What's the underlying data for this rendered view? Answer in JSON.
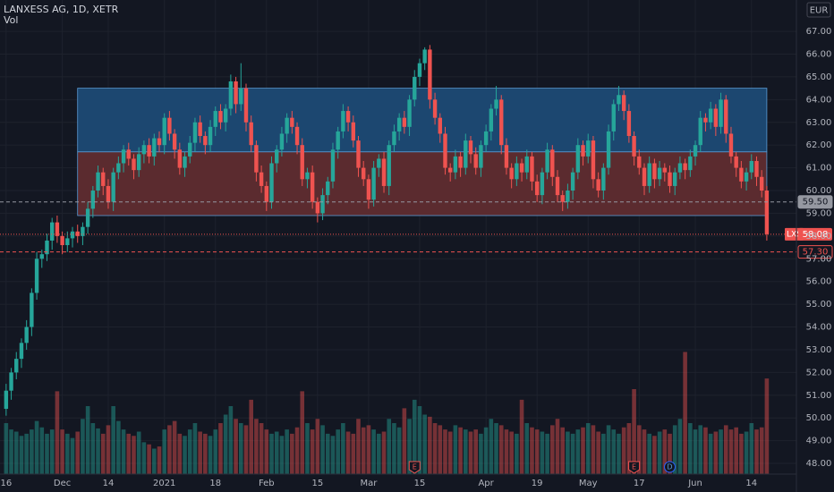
{
  "chart_data": {
    "type": "candlestick",
    "title": "LANXESS AG, 1D, XETR",
    "volume_label": "Vol",
    "currency": "EUR",
    "up_color": "#26a69a",
    "down_color": "#ef5350",
    "grid": true,
    "xlim": [
      -1.2,
      154.8
    ],
    "ylim": [
      47.53,
      68.38
    ],
    "volume_ylim": [
      0,
      1600
    ],
    "yticks": [
      {
        "value": 48,
        "label": "48.00"
      },
      {
        "value": 49,
        "label": "49.00"
      },
      {
        "value": 50,
        "label": "50.00"
      },
      {
        "value": 51,
        "label": "51.00"
      },
      {
        "value": 52,
        "label": "52.00"
      },
      {
        "value": 53,
        "label": "53.00"
      },
      {
        "value": 54,
        "label": "54.00"
      },
      {
        "value": 55,
        "label": "55.00"
      },
      {
        "value": 56,
        "label": "56.00"
      },
      {
        "value": 57,
        "label": "57.00"
      },
      {
        "value": 58,
        "label": "58.00"
      },
      {
        "value": 59,
        "label": "59.00"
      },
      {
        "value": 60,
        "label": "60.00"
      },
      {
        "value": 61,
        "label": "61.00"
      },
      {
        "value": 62,
        "label": "62.00"
      },
      {
        "value": 63,
        "label": "63.00"
      },
      {
        "value": 64,
        "label": "64.00"
      },
      {
        "value": 65,
        "label": "65.00"
      },
      {
        "value": 66,
        "label": "66.00"
      },
      {
        "value": 67,
        "label": "67.00"
      }
    ],
    "xticks": [
      {
        "value": 0,
        "label": "16"
      },
      {
        "value": 11,
        "label": "Dec"
      },
      {
        "value": 20,
        "label": "14"
      },
      {
        "value": 31,
        "label": "2021"
      },
      {
        "value": 41,
        "label": "18"
      },
      {
        "value": 51,
        "label": "Feb"
      },
      {
        "value": 61,
        "label": "15"
      },
      {
        "value": 71,
        "label": "Mar"
      },
      {
        "value": 81,
        "label": "15"
      },
      {
        "value": 94,
        "label": "Apr"
      },
      {
        "value": 104,
        "label": "19"
      },
      {
        "value": 114,
        "label": "May"
      },
      {
        "value": 124,
        "label": "17"
      },
      {
        "value": 135,
        "label": "Jun"
      },
      {
        "value": 146,
        "label": "14"
      }
    ],
    "range_box": {
      "top": 64.5,
      "mid": 61.7,
      "bottom": 58.9,
      "start": 14,
      "end": 149,
      "upper_color": "#1c4770",
      "lower_color": "#5b2b2f",
      "edge_color": "#5b9bd5"
    },
    "level_lines": [
      {
        "value": 59.5,
        "label": "59.50",
        "color": "#9598a1"
      },
      {
        "value": 57.3,
        "label": "57.30",
        "color": "#ef5350"
      }
    ],
    "last_price": {
      "symbol": "LXS",
      "value": 58.08,
      "color": "#ef5350"
    },
    "events": [
      {
        "label": "E",
        "index": 80
      },
      {
        "label": "E",
        "index": 123
      },
      {
        "label": "D",
        "index": 130
      }
    ],
    "ohlc": [
      [
        50.4,
        51.5,
        50.1,
        51.2
      ],
      [
        51.2,
        52.2,
        50.8,
        52.0
      ],
      [
        52.0,
        52.9,
        51.7,
        52.6
      ],
      [
        52.6,
        53.5,
        52.2,
        53.3
      ],
      [
        53.3,
        54.3,
        53.0,
        54.0
      ],
      [
        54.0,
        55.7,
        53.6,
        55.5
      ],
      [
        55.5,
        57.3,
        55.2,
        57.0
      ],
      [
        57.0,
        57.4,
        56.6,
        57.2
      ],
      [
        57.2,
        58.1,
        56.9,
        57.8
      ],
      [
        57.8,
        58.8,
        57.4,
        58.6
      ],
      [
        58.6,
        58.9,
        57.7,
        58.0
      ],
      [
        58.0,
        58.2,
        57.2,
        57.6
      ],
      [
        57.6,
        58.2,
        57.3,
        57.9
      ],
      [
        57.9,
        58.4,
        57.5,
        58.2
      ],
      [
        58.2,
        58.5,
        57.7,
        58.0
      ],
      [
        58.0,
        58.6,
        57.6,
        58.4
      ],
      [
        58.4,
        59.5,
        58.1,
        59.2
      ],
      [
        59.2,
        60.2,
        58.8,
        60.0
      ],
      [
        60.0,
        61.1,
        59.7,
        60.8
      ],
      [
        60.8,
        61.0,
        59.8,
        60.2
      ],
      [
        60.2,
        60.5,
        59.2,
        59.5
      ],
      [
        59.5,
        61.0,
        59.1,
        60.8
      ],
      [
        60.8,
        61.5,
        60.5,
        61.2
      ],
      [
        61.2,
        62.0,
        60.8,
        61.8
      ],
      [
        61.8,
        62.1,
        61.1,
        61.4
      ],
      [
        61.4,
        61.6,
        60.5,
        60.9
      ],
      [
        60.9,
        61.9,
        60.6,
        61.6
      ],
      [
        61.6,
        62.2,
        61.2,
        62.0
      ],
      [
        62.0,
        62.3,
        61.2,
        61.5
      ],
      [
        61.5,
        62.5,
        61.1,
        62.3
      ],
      [
        62.3,
        62.6,
        61.7,
        62.0
      ],
      [
        62.0,
        63.4,
        61.6,
        63.2
      ],
      [
        63.2,
        63.5,
        62.2,
        62.5
      ],
      [
        62.5,
        62.7,
        61.4,
        61.8
      ],
      [
        61.8,
        62.1,
        60.7,
        61.0
      ],
      [
        61.0,
        61.7,
        60.6,
        61.5
      ],
      [
        61.5,
        62.4,
        61.2,
        62.1
      ],
      [
        62.1,
        63.2,
        61.7,
        63.0
      ],
      [
        63.0,
        63.3,
        62.1,
        62.4
      ],
      [
        62.4,
        62.6,
        61.6,
        62.0
      ],
      [
        62.0,
        63.1,
        61.7,
        62.8
      ],
      [
        62.8,
        63.7,
        62.4,
        63.5
      ],
      [
        63.5,
        63.8,
        62.7,
        63.0
      ],
      [
        63.0,
        63.8,
        62.6,
        63.6
      ],
      [
        63.6,
        65.1,
        63.3,
        64.8
      ],
      [
        64.8,
        65.0,
        63.4,
        63.8
      ],
      [
        63.8,
        65.6,
        63.5,
        64.5
      ],
      [
        64.5,
        64.7,
        62.6,
        63.0
      ],
      [
        63.0,
        63.3,
        61.7,
        62.0
      ],
      [
        62.0,
        62.2,
        60.4,
        60.8
      ],
      [
        60.8,
        61.1,
        59.9,
        60.2
      ],
      [
        60.2,
        60.4,
        59.1,
        59.5
      ],
      [
        59.5,
        61.5,
        59.2,
        61.2
      ],
      [
        61.2,
        62.0,
        60.8,
        61.8
      ],
      [
        61.8,
        62.8,
        61.5,
        62.5
      ],
      [
        62.5,
        63.4,
        62.1,
        63.2
      ],
      [
        63.2,
        63.5,
        62.5,
        62.8
      ],
      [
        62.8,
        63.0,
        61.6,
        62.0
      ],
      [
        62.0,
        62.3,
        60.2,
        60.5
      ],
      [
        60.5,
        61.0,
        60.1,
        60.8
      ],
      [
        60.8,
        61.1,
        59.2,
        59.5
      ],
      [
        59.5,
        59.7,
        58.6,
        59.0
      ],
      [
        59.0,
        60.1,
        58.7,
        59.8
      ],
      [
        59.8,
        60.6,
        59.4,
        60.4
      ],
      [
        60.4,
        62.1,
        60.1,
        61.8
      ],
      [
        61.8,
        62.8,
        61.4,
        62.6
      ],
      [
        62.6,
        63.8,
        62.3,
        63.5
      ],
      [
        63.5,
        63.7,
        62.6,
        63.0
      ],
      [
        63.0,
        63.3,
        61.9,
        62.2
      ],
      [
        62.2,
        62.4,
        60.6,
        61.0
      ],
      [
        61.0,
        61.3,
        60.2,
        60.5
      ],
      [
        60.5,
        60.7,
        59.2,
        59.6
      ],
      [
        59.6,
        61.3,
        59.3,
        61.0
      ],
      [
        61.0,
        61.6,
        60.6,
        61.4
      ],
      [
        61.4,
        61.7,
        59.9,
        60.2
      ],
      [
        60.2,
        62.2,
        59.8,
        62.0
      ],
      [
        62.0,
        62.9,
        61.7,
        62.6
      ],
      [
        62.6,
        63.4,
        62.2,
        63.2
      ],
      [
        63.2,
        63.5,
        62.5,
        62.8
      ],
      [
        62.8,
        64.2,
        62.4,
        64.0
      ],
      [
        64.0,
        65.3,
        63.7,
        65.0
      ],
      [
        65.0,
        65.8,
        64.6,
        65.6
      ],
      [
        65.6,
        66.3,
        65.3,
        66.2
      ],
      [
        66.2,
        66.4,
        63.6,
        64.0
      ],
      [
        64.0,
        64.3,
        62.9,
        63.2
      ],
      [
        63.2,
        63.4,
        62.1,
        62.5
      ],
      [
        62.5,
        62.8,
        60.7,
        61.0
      ],
      [
        61.0,
        61.2,
        60.4,
        60.8
      ],
      [
        60.8,
        61.8,
        60.5,
        61.5
      ],
      [
        61.5,
        61.7,
        60.6,
        61.0
      ],
      [
        61.0,
        62.5,
        60.7,
        62.2
      ],
      [
        62.2,
        62.4,
        61.2,
        61.6
      ],
      [
        61.6,
        61.9,
        60.7,
        61.0
      ],
      [
        61.0,
        62.2,
        60.6,
        62.0
      ],
      [
        62.0,
        62.9,
        61.7,
        62.6
      ],
      [
        62.6,
        63.8,
        62.2,
        63.6
      ],
      [
        63.6,
        64.6,
        63.3,
        64.0
      ],
      [
        64.0,
        64.2,
        61.6,
        62.0
      ],
      [
        62.0,
        62.3,
        60.7,
        61.0
      ],
      [
        61.0,
        61.2,
        60.1,
        60.5
      ],
      [
        60.5,
        61.5,
        60.2,
        61.2
      ],
      [
        61.2,
        61.4,
        60.4,
        60.8
      ],
      [
        60.8,
        61.8,
        60.5,
        61.5
      ],
      [
        61.5,
        61.7,
        60.0,
        60.4
      ],
      [
        60.4,
        60.7,
        59.5,
        59.8
      ],
      [
        59.8,
        61.0,
        59.4,
        60.8
      ],
      [
        60.8,
        62.1,
        60.5,
        61.8
      ],
      [
        61.8,
        62.0,
        60.2,
        60.6
      ],
      [
        60.6,
        60.9,
        59.5,
        59.8
      ],
      [
        59.8,
        60.0,
        59.1,
        59.5
      ],
      [
        59.5,
        60.3,
        59.2,
        60.0
      ],
      [
        60.0,
        61.0,
        59.6,
        60.8
      ],
      [
        60.8,
        62.3,
        60.5,
        62.0
      ],
      [
        62.0,
        62.2,
        61.1,
        61.5
      ],
      [
        61.5,
        62.5,
        61.2,
        62.2
      ],
      [
        62.2,
        62.4,
        60.1,
        60.5
      ],
      [
        60.5,
        60.8,
        59.7,
        60.0
      ],
      [
        60.0,
        61.2,
        59.6,
        61.0
      ],
      [
        61.0,
        62.9,
        60.7,
        62.6
      ],
      [
        62.6,
        64.0,
        62.2,
        63.8
      ],
      [
        63.8,
        64.6,
        63.5,
        64.2
      ],
      [
        64.2,
        64.4,
        63.1,
        63.5
      ],
      [
        63.5,
        63.8,
        62.1,
        62.4
      ],
      [
        62.4,
        62.6,
        61.1,
        61.5
      ],
      [
        61.5,
        61.8,
        60.7,
        61.0
      ],
      [
        61.0,
        61.2,
        59.8,
        60.2
      ],
      [
        60.2,
        61.5,
        59.9,
        61.2
      ],
      [
        61.2,
        61.4,
        60.1,
        60.5
      ],
      [
        60.5,
        61.3,
        60.2,
        61.0
      ],
      [
        61.0,
        61.2,
        60.4,
        60.8
      ],
      [
        60.8,
        61.1,
        59.9,
        60.2
      ],
      [
        60.2,
        61.0,
        59.8,
        60.8
      ],
      [
        60.8,
        61.5,
        60.5,
        61.2
      ],
      [
        61.2,
        61.4,
        60.5,
        60.9
      ],
      [
        60.9,
        61.8,
        60.6,
        61.5
      ],
      [
        61.5,
        62.2,
        61.1,
        62.0
      ],
      [
        62.0,
        63.5,
        61.7,
        63.2
      ],
      [
        63.2,
        63.4,
        62.6,
        63.0
      ],
      [
        63.0,
        63.9,
        62.7,
        63.6
      ],
      [
        63.6,
        63.8,
        62.4,
        62.8
      ],
      [
        62.8,
        64.3,
        62.5,
        64.0
      ],
      [
        64.0,
        64.2,
        62.1,
        62.5
      ],
      [
        62.5,
        62.8,
        61.2,
        61.5
      ],
      [
        61.5,
        61.7,
        60.6,
        61.0
      ],
      [
        61.0,
        61.3,
        60.1,
        60.4
      ],
      [
        60.4,
        61.0,
        60.0,
        60.8
      ],
      [
        60.8,
        61.6,
        60.5,
        61.3
      ],
      [
        61.3,
        61.5,
        60.2,
        60.6
      ],
      [
        60.6,
        60.9,
        59.7,
        60.0
      ],
      [
        60.0,
        60.2,
        57.8,
        58.08
      ]
    ],
    "volumes": [
      480,
      420,
      400,
      360,
      380,
      420,
      500,
      440,
      380,
      420,
      780,
      420,
      380,
      340,
      400,
      520,
      640,
      480,
      430,
      380,
      460,
      640,
      500,
      420,
      380,
      360,
      400,
      300,
      280,
      240,
      260,
      420,
      460,
      500,
      380,
      360,
      420,
      480,
      400,
      380,
      360,
      420,
      480,
      560,
      640,
      520,
      480,
      460,
      700,
      520,
      480,
      420,
      380,
      400,
      360,
      420,
      380,
      440,
      780,
      480,
      420,
      520,
      460,
      380,
      360,
      420,
      480,
      400,
      380,
      520,
      440,
      460,
      420,
      380,
      400,
      520,
      480,
      440,
      620,
      520,
      700,
      640,
      560,
      540,
      480,
      460,
      420,
      400,
      460,
      440,
      420,
      400,
      420,
      380,
      440,
      520,
      480,
      460,
      420,
      400,
      380,
      700,
      480,
      440,
      420,
      400,
      380,
      460,
      520,
      440,
      400,
      380,
      420,
      440,
      480,
      460,
      400,
      380,
      460,
      420,
      380,
      440,
      480,
      800,
      460,
      420,
      380,
      360,
      400,
      420,
      380,
      460,
      520,
      1150,
      480,
      420,
      460,
      440,
      380,
      400,
      420,
      460,
      420,
      440,
      380,
      400,
      480,
      420,
      440,
      900
    ]
  }
}
